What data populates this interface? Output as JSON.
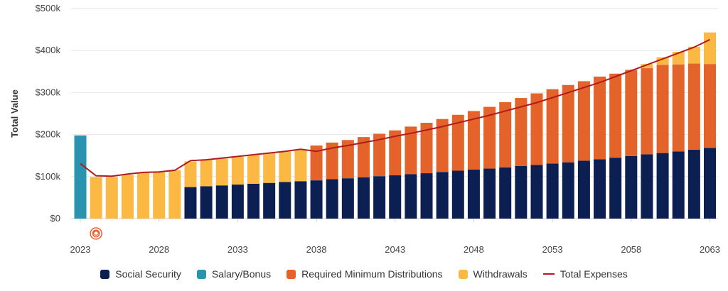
{
  "chart_data": {
    "type": "bar",
    "ylabel": "Total Value",
    "ylim": [
      0,
      500000
    ],
    "yticks": [
      "$0",
      "$100k",
      "$200k",
      "$300k",
      "$400k",
      "$500k"
    ],
    "ytick_values": [
      0,
      100000,
      200000,
      300000,
      400000,
      500000
    ],
    "xticks": [
      "2023",
      "2028",
      "2033",
      "2038",
      "2043",
      "2048",
      "2053",
      "2058",
      "2063"
    ],
    "xtick_values": [
      2023,
      2028,
      2033,
      2038,
      2043,
      2048,
      2053,
      2058,
      2063
    ],
    "categories": [
      2023,
      2024,
      2025,
      2026,
      2027,
      2028,
      2029,
      2030,
      2031,
      2032,
      2033,
      2034,
      2035,
      2036,
      2037,
      2038,
      2039,
      2040,
      2041,
      2042,
      2043,
      2044,
      2045,
      2046,
      2047,
      2048,
      2049,
      2050,
      2051,
      2052,
      2053,
      2054,
      2055,
      2056,
      2057,
      2058,
      2059,
      2060,
      2061,
      2062,
      2063
    ],
    "series": [
      {
        "name": "Social Security",
        "color": "#0b1f52",
        "values": [
          0,
          0,
          0,
          0,
          0,
          0,
          0,
          75000,
          77000,
          79000,
          81000,
          83000,
          85000,
          87000,
          89000,
          91000,
          94000,
          96000,
          98000,
          101000,
          103000,
          106000,
          108000,
          111000,
          114000,
          117000,
          119000,
          122000,
          125000,
          128000,
          131000,
          134000,
          138000,
          141000,
          145000,
          149000,
          153000,
          156000,
          160000,
          164000,
          168000
        ]
      },
      {
        "name": "Salary/Bonus",
        "color": "#2a93b0",
        "values": [
          198000,
          0,
          0,
          0,
          0,
          0,
          0,
          0,
          0,
          0,
          0,
          0,
          0,
          0,
          0,
          0,
          0,
          0,
          0,
          0,
          0,
          0,
          0,
          0,
          0,
          0,
          0,
          0,
          0,
          0,
          0,
          0,
          0,
          0,
          0,
          0,
          0,
          0,
          0,
          0,
          0
        ]
      },
      {
        "name": "Required Minimum Distributions",
        "color": "#e4632a",
        "values": [
          0,
          0,
          0,
          0,
          0,
          0,
          0,
          0,
          0,
          0,
          0,
          0,
          0,
          0,
          0,
          83000,
          87000,
          91000,
          96000,
          101000,
          107000,
          113000,
          120000,
          126000,
          133000,
          139000,
          147000,
          155000,
          162000,
          170000,
          177000,
          184000,
          189000,
          197000,
          200000,
          204000,
          205000,
          210000,
          207000,
          205000,
          200000
        ]
      },
      {
        "name": "Withdrawals",
        "color": "#fbb843",
        "values": [
          0,
          99000,
          99000,
          104000,
          109000,
          110000,
          115000,
          61000,
          62000,
          64000,
          66000,
          68000,
          71000,
          73000,
          75000,
          0,
          0,
          0,
          0,
          0,
          0,
          0,
          0,
          0,
          0,
          0,
          0,
          0,
          0,
          0,
          0,
          0,
          0,
          0,
          0,
          2000,
          10000,
          18000,
          30000,
          40000,
          75000
        ]
      }
    ],
    "line_series": {
      "name": "Total Expenses",
      "color": "#b01c1c",
      "values": [
        131000,
        102000,
        101000,
        106000,
        110000,
        111000,
        115000,
        138000,
        140000,
        144000,
        148000,
        152000,
        156000,
        160000,
        165000,
        160000,
        168000,
        174000,
        181000,
        188000,
        196000,
        203000,
        211000,
        219000,
        228000,
        237000,
        246000,
        256000,
        266000,
        276000,
        288000,
        300000,
        312000,
        324000,
        338000,
        352000,
        366000,
        380000,
        394000,
        408000,
        426000
      ]
    },
    "marker_icon": "stacked-layers-icon",
    "marker_x": 2024,
    "grid": true,
    "legend_position": "bottom"
  }
}
